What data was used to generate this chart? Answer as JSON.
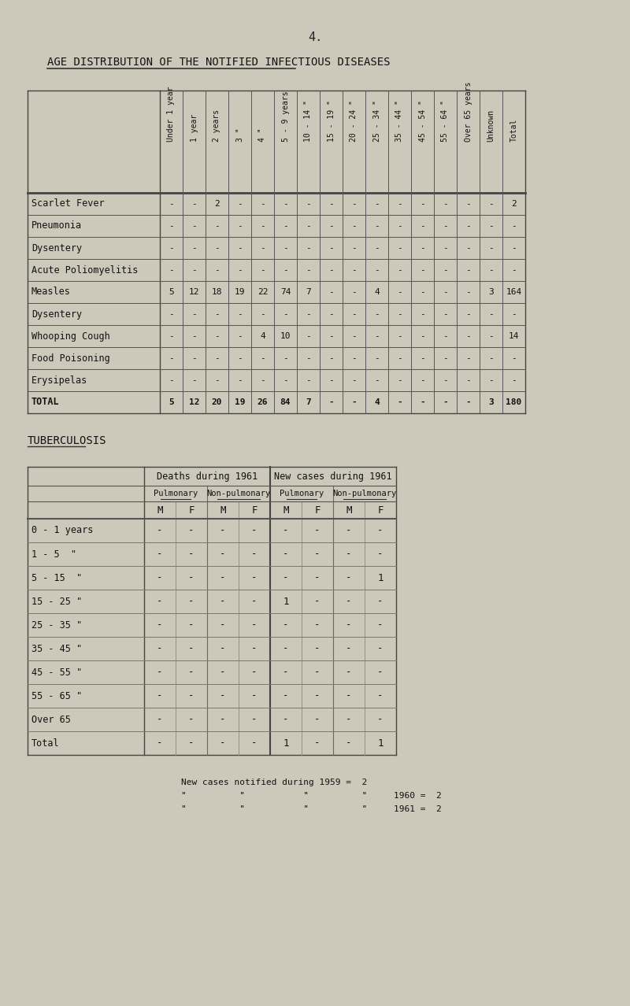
{
  "page_num": "4.",
  "title": "AGE DISTRIBUTION OF THE NOTIFIED INFECTIOUS DISEASES",
  "bg_color": "#ccc9bb",
  "table1": {
    "col_headers": [
      "Under 1 year",
      "1 year",
      "2 years",
      "3 \"",
      "4 \"",
      "5 - 9 years",
      "10 - 14 \"",
      "15 - 19 \"",
      "20 - 24 \"",
      "25 - 34 \"",
      "35 - 44 \"",
      "45 - 54 \"",
      "55 - 64 \"",
      "Over 65 years",
      "Unknown",
      "Total"
    ],
    "row_labels": [
      "Scarlet Fever",
      "Pneumonia",
      "Dysentery",
      "Acute Poliomyelitis",
      "Measles",
      "Dysentery",
      "Whooping Cough",
      "Food Poisoning",
      "Erysipelas",
      "TOTAL"
    ],
    "data": [
      [
        "-",
        "-",
        "2",
        "-",
        "-",
        "-",
        "-",
        "-",
        "-",
        "-",
        "-",
        "-",
        "-",
        "-",
        "-",
        "2"
      ],
      [
        "-",
        "-",
        "-",
        "-",
        "-",
        "-",
        "-",
        "-",
        "-",
        "-",
        "-",
        "-",
        "-",
        "-",
        "-",
        "-"
      ],
      [
        "-",
        "-",
        "-",
        "-",
        "-",
        "-",
        "-",
        "-",
        "-",
        "-",
        "-",
        "-",
        "-",
        "-",
        "-",
        "-"
      ],
      [
        "-",
        "-",
        "-",
        "-",
        "-",
        "-",
        "-",
        "-",
        "-",
        "-",
        "-",
        "-",
        "-",
        "-",
        "-",
        "-"
      ],
      [
        "5",
        "12",
        "18",
        "19",
        "22",
        "74",
        "7",
        "-",
        "-",
        "4",
        "-",
        "-",
        "-",
        "-",
        "3",
        "164"
      ],
      [
        "-",
        "-",
        "-",
        "-",
        "-",
        "-",
        "-",
        "-",
        "-",
        "-",
        "-",
        "-",
        "-",
        "-",
        "-",
        "-"
      ],
      [
        "-",
        "-",
        "-",
        "-",
        "4",
        "10",
        "-",
        "-",
        "-",
        "-",
        "-",
        "-",
        "-",
        "-",
        "-",
        "14"
      ],
      [
        "-",
        "-",
        "-",
        "-",
        "-",
        "-",
        "-",
        "-",
        "-",
        "-",
        "-",
        "-",
        "-",
        "-",
        "-",
        "-"
      ],
      [
        "-",
        "-",
        "-",
        "-",
        "-",
        "-",
        "-",
        "-",
        "-",
        "-",
        "-",
        "-",
        "-",
        "-",
        "-",
        "-"
      ],
      [
        "5",
        "12",
        "20",
        "19",
        "26",
        "84",
        "7",
        "-",
        "-",
        "4",
        "-",
        "-",
        "-",
        "-",
        "3",
        "180"
      ]
    ]
  },
  "tb_title": "TUBERCULOSIS",
  "table2": {
    "header1": [
      "Deaths during 1961",
      "New cases during 1961"
    ],
    "header2": [
      "Pulmonary",
      "Non-pulmonary",
      "Pulmonary",
      "Non-pulmonary"
    ],
    "header3": [
      "M",
      "F",
      "M",
      "F",
      "M",
      "F",
      "M",
      "F"
    ],
    "row_labels": [
      "0 - 1 years",
      "1 - 5  \"",
      "5 - 15  \"",
      "15 - 25 \"",
      "25 - 35 \"",
      "35 - 45 \"",
      "45 - 55 \"",
      "55 - 65 \"",
      "Over 65",
      "Total"
    ],
    "data": [
      [
        "-",
        "-",
        "-",
        "-",
        "-",
        "-",
        "-",
        "-"
      ],
      [
        "-",
        "-",
        "-",
        "-",
        "-",
        "-",
        "-",
        "-"
      ],
      [
        "-",
        "-",
        "-",
        "-",
        "-",
        "-",
        "-",
        "1"
      ],
      [
        "-",
        "-",
        "-",
        "-",
        "1",
        "-",
        "-",
        "-"
      ],
      [
        "-",
        "-",
        "-",
        "-",
        "-",
        "-",
        "-",
        "-"
      ],
      [
        "-",
        "-",
        "-",
        "-",
        "-",
        "-",
        "-",
        "-"
      ],
      [
        "-",
        "-",
        "-",
        "-",
        "-",
        "-",
        "-",
        "-"
      ],
      [
        "-",
        "-",
        "-",
        "-",
        "-",
        "-",
        "-",
        "-"
      ],
      [
        "-",
        "-",
        "-",
        "-",
        "-",
        "-",
        "-",
        "-"
      ],
      [
        "-",
        "-",
        "-",
        "-",
        "1",
        "-",
        "-",
        "1"
      ]
    ]
  },
  "footnote_line1": "New cases notified during 1959 =  2",
  "footnote_line2": "\"          \"           \"          \"     1960 =  2",
  "footnote_line3": "\"          \"           \"          \"     1961 =  2"
}
